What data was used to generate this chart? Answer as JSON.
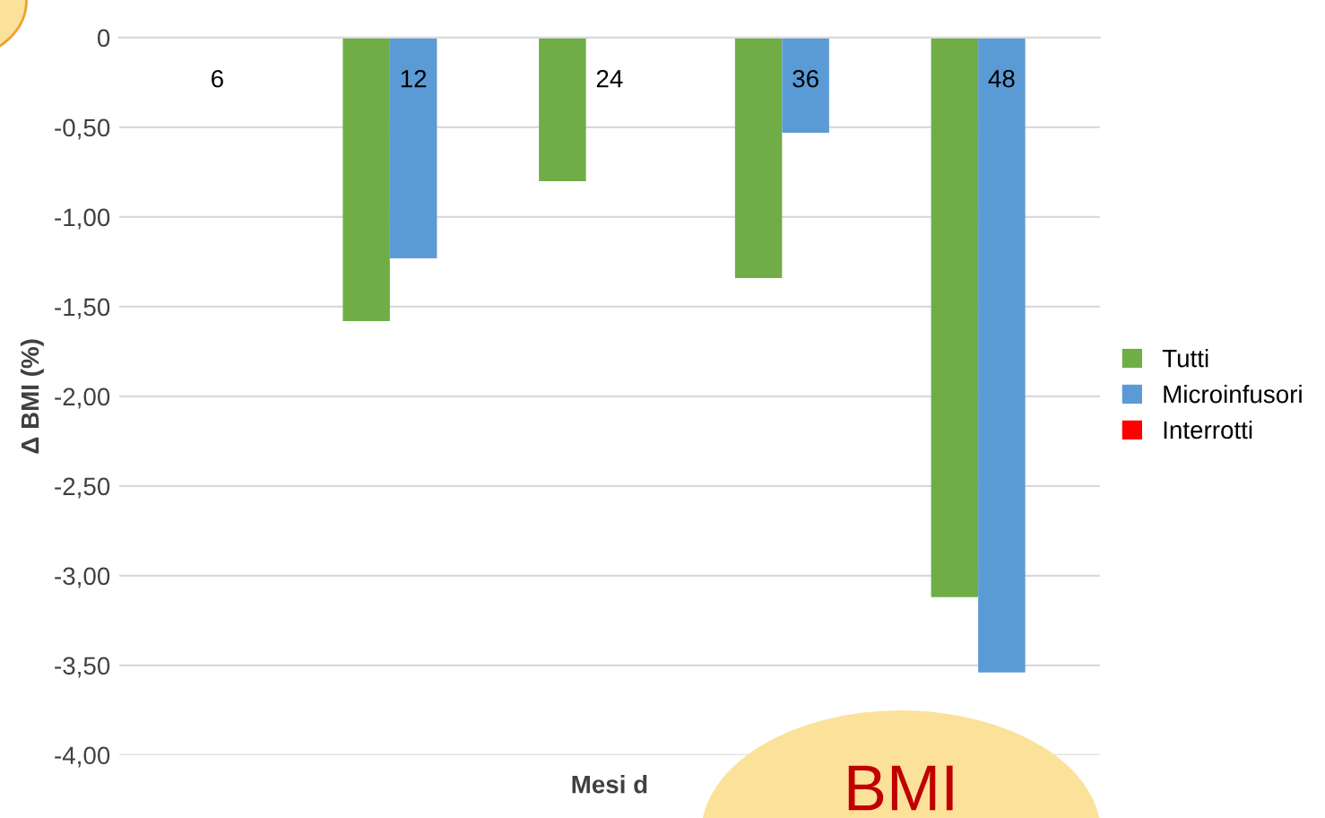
{
  "chart_data": {
    "type": "bar",
    "xlabel": "Mesi d",
    "ylabel": "Δ BMI (%)",
    "categories": [
      "6",
      "12",
      "24",
      "36",
      "48"
    ],
    "series": [
      {
        "name": "Tutti",
        "color": "#70ad47",
        "values": [
          null,
          -1.58,
          -0.8,
          -1.34,
          -3.12
        ]
      },
      {
        "name": "Microinfusori",
        "color": "#5b9bd5",
        "values": [
          null,
          -1.23,
          null,
          -0.53,
          -3.54
        ]
      },
      {
        "name": "Interrotti",
        "color": "#ff0000",
        "values": [
          null,
          null,
          null,
          null,
          null
        ]
      }
    ],
    "ylim": [
      -4,
      0
    ],
    "yticks": [
      {
        "value": -4,
        "label": "-4,00"
      },
      {
        "value": -3.5,
        "label": "-3,50"
      },
      {
        "value": -3,
        "label": "-3,00"
      },
      {
        "value": -2.5,
        "label": "-2,50"
      },
      {
        "value": -2,
        "label": "-2,00"
      },
      {
        "value": -1.5,
        "label": "-1,50"
      },
      {
        "value": -1,
        "label": "-1,00"
      },
      {
        "value": -0.5,
        "label": "-0,50"
      },
      0
    ],
    "grid": "y",
    "legend": "right",
    "annotations": [
      "BMI"
    ]
  }
}
